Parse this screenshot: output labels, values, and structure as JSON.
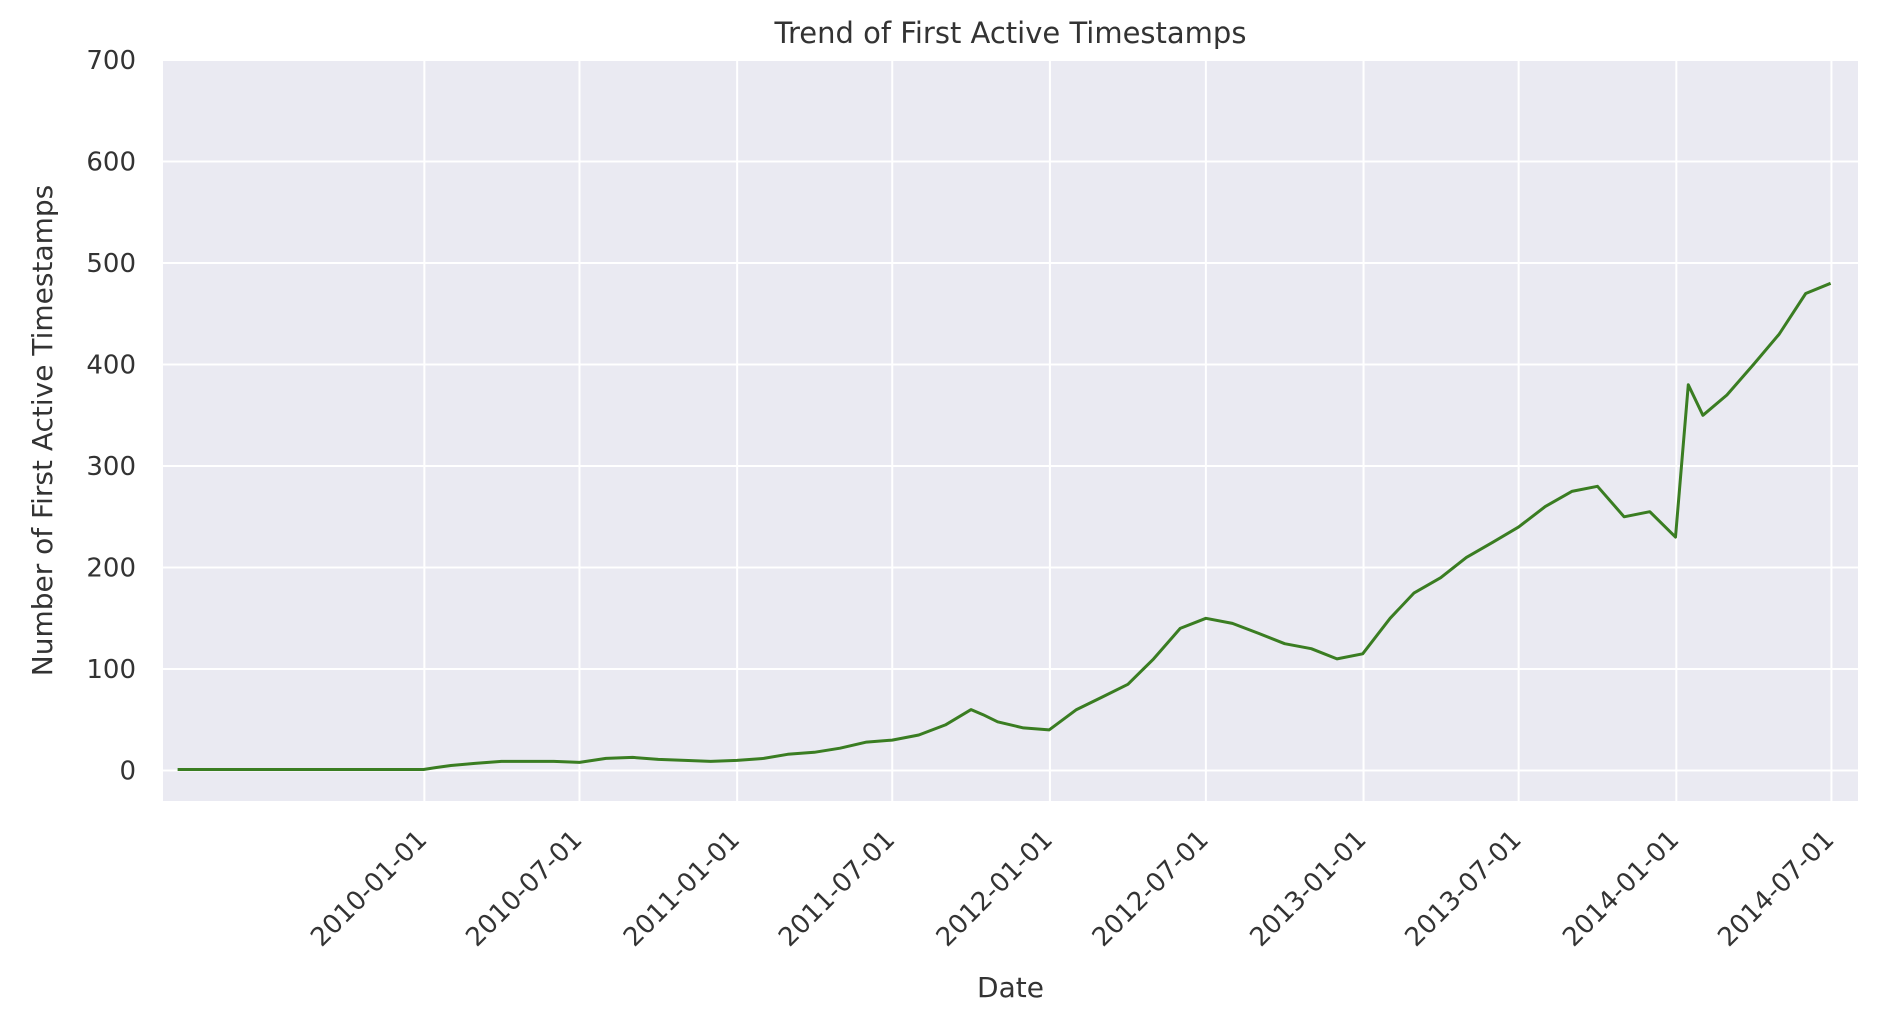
{
  "chart_data": {
    "type": "line",
    "title": "Trend of First Active Timestamps",
    "xlabel": "Date",
    "ylabel": "Number of First Active Timestamps",
    "ylim": [
      -30,
      700
    ],
    "xlim": [
      "2009-03-02",
      "2014-08-01"
    ],
    "yticks": [
      0,
      100,
      200,
      300,
      400,
      500,
      600,
      700
    ],
    "xticks": [
      "2010-01-01",
      "2010-07-01",
      "2011-01-01",
      "2011-07-01",
      "2012-01-01",
      "2012-07-01",
      "2013-01-01",
      "2013-07-01",
      "2014-01-01",
      "2014-07-01"
    ],
    "grid": true,
    "legend": "none",
    "background_color": "#eaeaf2",
    "line_color": "#3a7d22",
    "series": [
      {
        "x": [
          "2009-03-19",
          "2009-06-01",
          "2009-09-01",
          "2009-12-31",
          "2010-01-15",
          "2010-02-01",
          "2010-03-01",
          "2010-04-01",
          "2010-05-01",
          "2010-06-01",
          "2010-07-01",
          "2010-08-01",
          "2010-09-01",
          "2010-10-01",
          "2010-11-01",
          "2010-12-01",
          "2011-01-01",
          "2011-02-01",
          "2011-03-01",
          "2011-04-01",
          "2011-05-01",
          "2011-06-01",
          "2011-07-01",
          "2011-08-01",
          "2011-09-01",
          "2011-10-01",
          "2011-10-15",
          "2011-11-01",
          "2011-12-01",
          "2011-12-31",
          "2012-02-01",
          "2012-03-01",
          "2012-04-01",
          "2012-05-01",
          "2012-06-01",
          "2012-07-01",
          "2012-08-01",
          "2012-09-01",
          "2012-10-01",
          "2012-11-01",
          "2012-12-01",
          "2012-12-31",
          "2013-02-01",
          "2013-03-01",
          "2013-04-01",
          "2013-05-01",
          "2013-06-01",
          "2013-07-01",
          "2013-08-01",
          "2013-09-01",
          "2013-10-01",
          "2013-11-01",
          "2013-12-01",
          "2013-12-31",
          "2014-01-15",
          "2014-02-01",
          "2014-03-01",
          "2014-04-01",
          "2014-05-01",
          "2014-06-01",
          "2014-06-30"
        ],
        "y": [
          1,
          1,
          1,
          1,
          3,
          5,
          7,
          9,
          9,
          9,
          8,
          12,
          13,
          11,
          10,
          9,
          10,
          12,
          16,
          18,
          22,
          28,
          30,
          35,
          45,
          60,
          55,
          48,
          42,
          40,
          60,
          72,
          85,
          110,
          140,
          150,
          145,
          135,
          125,
          120,
          110,
          115,
          150,
          175,
          190,
          210,
          225,
          240,
          260,
          275,
          280,
          250,
          255,
          230,
          380,
          350,
          370,
          400,
          430,
          470,
          480
        ]
      }
    ]
  }
}
